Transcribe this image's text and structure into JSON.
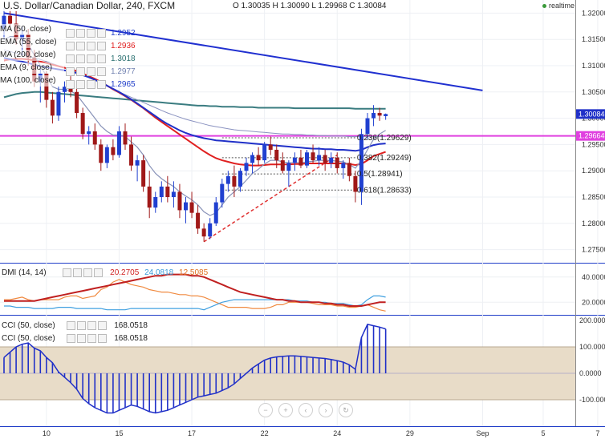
{
  "header": {
    "symbol": "U.S. Dollar/Canadian Dollar, 240, FXCM",
    "ohlc": "O 1.30035  H 1.30090  L 1.29968  C 1.30084",
    "realtime": "realtime"
  },
  "legend": [
    {
      "name": "MA (50, close)",
      "value": "1.2952",
      "color": "#1e3cc8"
    },
    {
      "name": "EMA (55, close)",
      "value": "1.2936",
      "color": "#e02020"
    },
    {
      "name": "MA (200, close)",
      "value": "1.3018",
      "color": "#2a7070"
    },
    {
      "name": "EMA (9, close)",
      "value": "1.2977",
      "color": "#7080b0"
    },
    {
      "name": "MA (100, close)",
      "value": "1.2965",
      "color": "#1e3cc8"
    }
  ],
  "dmi": {
    "label": "DMI (14, 14)",
    "v1": "20.2705",
    "v2": "24.0818",
    "v3": "12.5085"
  },
  "cci": [
    {
      "label": "CCI (50, close)",
      "value": "168.0518"
    },
    {
      "label": "CCI (50, close)",
      "value": "168.0518"
    }
  ],
  "nav_icons": [
    "zoom-out",
    "zoom-in",
    "scroll-left",
    "scroll-right",
    "reset"
  ],
  "chart_data": {
    "type": "candlestick",
    "price_axis": {
      "min": 1.2725,
      "max": 1.3225,
      "ticks": [
        1.275,
        1.28,
        1.285,
        1.29,
        1.295,
        1.3,
        1.305,
        1.31,
        1.315,
        1.32
      ]
    },
    "x_ticks": [
      {
        "label": "10",
        "idx": 7
      },
      {
        "label": "15",
        "idx": 19
      },
      {
        "label": "17",
        "idx": 31
      },
      {
        "label": "22",
        "idx": 43
      },
      {
        "label": "24",
        "idx": 55
      },
      {
        "label": "29",
        "idx": 67
      },
      {
        "label": "Sep",
        "idx": 79
      },
      {
        "label": "5",
        "idx": 89
      },
      {
        "label": "7",
        "idx": 98
      }
    ],
    "last_price_label": "1.30084",
    "horizontal_level": {
      "price": 1.29664,
      "label": "1.29664",
      "color": "#e040e0"
    },
    "fibonacci": [
      {
        "label": "0.236(1.29629)",
        "price": 1.29629
      },
      {
        "label": "0.382(1.29249)",
        "price": 1.29249
      },
      {
        "label": "0.5(1.28941)",
        "price": 1.28941
      },
      {
        "label": "0.618(1.28633)",
        "price": 1.28633
      }
    ],
    "ohlc": [
      [
        1.317,
        1.321,
        1.315,
        1.3195
      ],
      [
        1.3195,
        1.3215,
        1.317,
        1.318
      ],
      [
        1.318,
        1.3205,
        1.314,
        1.315
      ],
      [
        1.315,
        1.3175,
        1.312,
        1.316
      ],
      [
        1.316,
        1.317,
        1.31,
        1.3115
      ],
      [
        1.3115,
        1.313,
        1.306,
        1.307
      ],
      [
        1.307,
        1.3095,
        1.303,
        1.3085
      ],
      [
        1.3085,
        1.309,
        1.302,
        1.3035
      ],
      [
        1.3035,
        1.305,
        1.299,
        1.3005
      ],
      [
        1.3005,
        1.306,
        1.2995,
        1.305
      ],
      [
        1.305,
        1.307,
        1.303,
        1.306
      ],
      [
        1.306,
        1.308,
        1.304,
        1.305
      ],
      [
        1.305,
        1.307,
        1.3,
        1.301
      ],
      [
        1.301,
        1.302,
        1.296,
        1.297
      ],
      [
        1.297,
        1.2985,
        1.295,
        1.2975
      ],
      [
        1.2975,
        1.299,
        1.294,
        1.295
      ],
      [
        1.295,
        1.296,
        1.29,
        1.2915
      ],
      [
        1.2915,
        1.295,
        1.2905,
        1.2945
      ],
      [
        1.2945,
        1.296,
        1.292,
        1.293
      ],
      [
        1.293,
        1.2985,
        1.2925,
        1.2975
      ],
      [
        1.2975,
        1.299,
        1.294,
        1.295
      ],
      [
        1.295,
        1.2965,
        1.29,
        1.291
      ],
      [
        1.291,
        1.293,
        1.288,
        1.292
      ],
      [
        1.292,
        1.293,
        1.286,
        1.287
      ],
      [
        1.287,
        1.29,
        1.281,
        1.283
      ],
      [
        1.283,
        1.286,
        1.282,
        1.285
      ],
      [
        1.285,
        1.288,
        1.284,
        1.287
      ],
      [
        1.287,
        1.289,
        1.284,
        1.285
      ],
      [
        1.285,
        1.288,
        1.283,
        1.286
      ],
      [
        1.286,
        1.2875,
        1.281,
        1.2825
      ],
      [
        1.2825,
        1.285,
        1.28,
        1.284
      ],
      [
        1.284,
        1.286,
        1.281,
        1.282
      ],
      [
        1.282,
        1.2835,
        1.278,
        1.279
      ],
      [
        1.279,
        1.28,
        1.2765,
        1.2775
      ],
      [
        1.2775,
        1.281,
        1.277,
        1.28
      ],
      [
        1.28,
        1.285,
        1.2795,
        1.284
      ],
      [
        1.284,
        1.2885,
        1.283,
        1.2875
      ],
      [
        1.2875,
        1.29,
        1.286,
        1.289
      ],
      [
        1.289,
        1.291,
        1.285,
        1.287
      ],
      [
        1.287,
        1.2905,
        1.286,
        1.29
      ],
      [
        1.29,
        1.2925,
        1.289,
        1.2915
      ],
      [
        1.2915,
        1.2935,
        1.2895,
        1.293
      ],
      [
        1.293,
        1.2945,
        1.291,
        1.292
      ],
      [
        1.292,
        1.2955,
        1.2915,
        1.295
      ],
      [
        1.295,
        1.2965,
        1.293,
        1.294
      ],
      [
        1.294,
        1.295,
        1.2905,
        1.292
      ],
      [
        1.292,
        1.2935,
        1.2895,
        1.29
      ],
      [
        1.29,
        1.292,
        1.287,
        1.2915
      ],
      [
        1.2915,
        1.2935,
        1.29,
        1.2925
      ],
      [
        1.2925,
        1.294,
        1.2905,
        1.291
      ],
      [
        1.291,
        1.294,
        1.2905,
        1.2935
      ],
      [
        1.2935,
        1.295,
        1.2915,
        1.292
      ],
      [
        1.292,
        1.2945,
        1.291,
        1.293
      ],
      [
        1.293,
        1.294,
        1.29,
        1.2915
      ],
      [
        1.2915,
        1.2935,
        1.2905,
        1.2925
      ],
      [
        1.2925,
        1.2935,
        1.2895,
        1.2905
      ],
      [
        1.2905,
        1.292,
        1.2885,
        1.2915
      ],
      [
        1.2915,
        1.2925,
        1.288,
        1.289
      ],
      [
        1.289,
        1.29,
        1.284,
        1.286
      ],
      [
        1.286,
        1.298,
        1.2835,
        1.297
      ],
      [
        1.297,
        1.301,
        1.296,
        1.3
      ],
      [
        1.3,
        1.3025,
        1.2985,
        1.301
      ],
      [
        1.301,
        1.302,
        1.2995,
        1.3005
      ],
      [
        1.3004,
        1.3009,
        1.2997,
        1.3008
      ]
    ],
    "ma200": [
      1.304,
      1.3043,
      1.3046,
      1.3048,
      1.3049,
      1.305,
      1.305,
      1.3049,
      1.3048,
      1.3047,
      1.3046,
      1.3045,
      1.3044,
      1.3043,
      1.3042,
      1.3041,
      1.304,
      1.3039,
      1.3038,
      1.3037,
      1.3036,
      1.3035,
      1.3034,
      1.3033,
      1.3032,
      1.3031,
      1.303,
      1.3029,
      1.3028,
      1.3027,
      1.3026,
      1.3025,
      1.3024,
      1.3024,
      1.3023,
      1.3023,
      1.3022,
      1.3022,
      1.3022,
      1.3021,
      1.3021,
      1.3021,
      1.302,
      1.302,
      1.302,
      1.302,
      1.302,
      1.302,
      1.3019,
      1.3019,
      1.3019,
      1.3019,
      1.3019,
      1.3019,
      1.3019,
      1.3019,
      1.3019,
      1.3019,
      1.3018,
      1.3018,
      1.3018,
      1.3018,
      1.3018,
      1.3018
    ],
    "ema55": [
      1.311,
      1.3112,
      1.3113,
      1.3113,
      1.3112,
      1.311,
      1.3108,
      1.3105,
      1.3102,
      1.3099,
      1.3096,
      1.3093,
      1.309,
      1.3085,
      1.308,
      1.3075,
      1.3069,
      1.3062,
      1.3055,
      1.3049,
      1.3042,
      1.3035,
      1.3027,
      1.3019,
      1.301,
      1.3001,
      1.2993,
      1.2985,
      1.2977,
      1.2969,
      1.2961,
      1.2953,
      1.2945,
      1.2937,
      1.293,
      1.2924,
      1.292,
      1.2917,
      1.2914,
      1.2912,
      1.2911,
      1.291,
      1.291,
      1.2911,
      1.2912,
      1.2912,
      1.2912,
      1.2912,
      1.2913,
      1.2913,
      1.2914,
      1.2914,
      1.2914,
      1.2914,
      1.2914,
      1.2914,
      1.2914,
      1.2913,
      1.2911,
      1.2913,
      1.292,
      1.2928,
      1.2932,
      1.2936
    ],
    "ma50": [
      1.3115,
      1.3112,
      1.311,
      1.3108,
      1.3105,
      1.3102,
      1.3099,
      1.3097,
      1.3095,
      1.3093,
      1.3091,
      1.3089,
      1.3086,
      1.3082,
      1.3078,
      1.3073,
      1.3068,
      1.3062,
      1.3056,
      1.305,
      1.3043,
      1.3036,
      1.3028,
      1.302,
      1.3012,
      1.3004,
      1.2996,
      1.2989,
      1.2983,
      1.2977,
      1.2972,
      1.2968,
      1.2965,
      1.2962,
      1.296,
      1.2958,
      1.2957,
      1.2956,
      1.2955,
      1.2954,
      1.2953,
      1.2952,
      1.2951,
      1.295,
      1.2949,
      1.2948,
      1.2947,
      1.2946,
      1.2945,
      1.2944,
      1.2943,
      1.2942,
      1.2942,
      1.2941,
      1.2941,
      1.294,
      1.294,
      1.2939,
      1.2938,
      1.294,
      1.2945,
      1.2949,
      1.2951,
      1.2952
    ],
    "ma100": [
      1.313,
      1.3127,
      1.3124,
      1.3121,
      1.3118,
      1.3115,
      1.3112,
      1.3108,
      1.3104,
      1.31,
      1.3096,
      1.3092,
      1.3088,
      1.3084,
      1.3079,
      1.3074,
      1.3068,
      1.3062,
      1.3056,
      1.305,
      1.3045,
      1.304,
      1.3035,
      1.303,
      1.3025,
      1.302,
      1.3015,
      1.301,
      1.3006,
      1.3002,
      1.2998,
      1.2995,
      1.2992,
      1.2989,
      1.2986,
      1.2984,
      1.2982,
      1.298,
      1.2978,
      1.2977,
      1.2976,
      1.2975,
      1.2974,
      1.2973,
      1.2972,
      1.2971,
      1.297,
      1.297,
      1.2969,
      1.2969,
      1.2968,
      1.2968,
      1.2967,
      1.2967,
      1.2966,
      1.2966,
      1.2966,
      1.2965,
      1.2965,
      1.2965,
      1.2965,
      1.2965,
      1.2965,
      1.2965
    ],
    "ema9": [
      1.315,
      1.3155,
      1.3155,
      1.315,
      1.314,
      1.312,
      1.31,
      1.308,
      1.306,
      1.3055,
      1.3055,
      1.3052,
      1.3045,
      1.303,
      1.3015,
      1.3,
      1.2985,
      1.2975,
      1.2968,
      1.2968,
      1.2965,
      1.2955,
      1.2945,
      1.293,
      1.291,
      1.2895,
      1.2885,
      1.2877,
      1.287,
      1.286,
      1.2852,
      1.2845,
      1.2835,
      1.2822,
      1.2815,
      1.282,
      1.2835,
      1.285,
      1.286,
      1.287,
      1.2882,
      1.2895,
      1.2903,
      1.2913,
      1.292,
      1.292,
      1.2917,
      1.2915,
      1.2916,
      1.2915,
      1.2917,
      1.2918,
      1.292,
      1.292,
      1.292,
      1.2918,
      1.2917,
      1.2912,
      1.2905,
      1.292,
      1.294,
      1.296,
      1.297,
      1.2977
    ],
    "trendline_resistance": {
      "from": {
        "idx": 0,
        "price": 1.32
      },
      "to": {
        "idx": 79,
        "price": 1.3053
      }
    },
    "trendline_support": {
      "from": {
        "idx": 33,
        "price": 1.2765
      },
      "to": {
        "idx": 55,
        "price": 1.293
      }
    },
    "dmi_axis": {
      "min": 10,
      "max": 50,
      "ticks": [
        20,
        40
      ]
    },
    "dmi_series": {
      "adx": [
        21,
        21,
        21,
        21,
        21,
        21,
        22,
        23,
        24,
        25,
        26,
        27,
        28,
        29,
        30,
        31,
        32,
        33,
        34,
        35,
        36,
        37,
        38,
        39,
        40,
        41,
        41,
        42,
        42,
        42,
        42,
        41,
        41,
        40,
        38,
        36,
        34,
        32,
        30,
        28,
        27,
        26,
        25,
        24,
        23,
        22,
        22,
        21,
        21,
        20,
        20,
        20,
        20,
        19,
        19,
        18,
        18,
        17,
        17,
        17,
        18,
        19,
        20,
        20
      ],
      "plus_di": [
        17,
        17,
        16,
        16,
        16,
        15,
        15,
        15,
        15,
        16,
        16,
        16,
        15,
        15,
        15,
        15,
        15,
        14,
        14,
        14,
        14,
        15,
        15,
        15,
        15,
        15,
        15,
        15,
        15,
        15,
        15,
        15,
        15,
        14,
        16,
        18,
        20,
        21,
        22,
        22,
        22,
        22,
        22,
        22,
        22,
        22,
        22,
        22,
        21,
        21,
        21,
        20,
        20,
        20,
        19,
        19,
        19,
        18,
        17,
        18,
        22,
        25,
        25,
        24
      ],
      "minus_di": [
        22,
        22,
        23,
        24,
        22,
        21,
        22,
        22,
        22,
        22,
        24,
        25,
        25,
        23,
        24,
        25,
        30,
        32,
        36,
        38,
        36,
        34,
        33,
        32,
        30,
        29,
        28,
        28,
        27,
        26,
        26,
        25,
        25,
        24,
        22,
        20,
        18,
        16,
        16,
        16,
        16,
        15,
        15,
        15,
        16,
        18,
        18,
        20,
        20,
        20,
        20,
        19,
        18,
        18,
        18,
        17,
        17,
        16,
        16,
        17,
        18,
        16,
        14,
        13
      ]
    },
    "cci_axis": {
      "min": -200,
      "max": 200,
      "ticks": [
        200,
        100,
        0,
        -100
      ]
    },
    "cci_values": [
      60,
      80,
      100,
      110,
      115,
      95,
      85,
      60,
      40,
      5,
      -15,
      -35,
      -60,
      -95,
      -115,
      -130,
      -140,
      -150,
      -150,
      -140,
      -130,
      -120,
      -125,
      -135,
      -145,
      -150,
      -145,
      -140,
      -130,
      -120,
      -110,
      -100,
      -90,
      -85,
      -80,
      -75,
      -65,
      -55,
      -40,
      -20,
      0,
      20,
      35,
      50,
      58,
      62,
      64,
      66,
      66,
      64,
      62,
      60,
      58,
      56,
      52,
      48,
      42,
      32,
      15,
      135,
      185,
      180,
      175,
      168
    ]
  }
}
